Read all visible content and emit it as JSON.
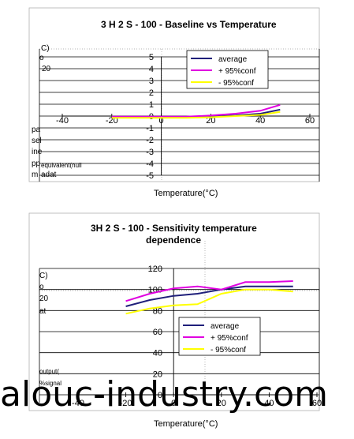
{
  "chart_data": [
    {
      "type": "line",
      "title": "3 H 2 S - 100 - Baseline  vs  Temperature",
      "xlabel": "Temperature(°C)",
      "ylabel_fragments": [
        "C)",
        "o",
        "20",
        "pa",
        "sel",
        "ine",
        "pp",
        "m",
        "equivalent(null",
        "adat"
      ],
      "xlim": [
        -40,
        60
      ],
      "ylim": [
        -5,
        5
      ],
      "x_ticks": [
        "-40",
        "-20",
        "0",
        "20",
        "40",
        "60"
      ],
      "y_ticks": [
        "5",
        "4",
        "3",
        "2",
        "1",
        "0",
        "-1",
        "-2",
        "-3",
        "-4",
        "-5"
      ],
      "legend": [
        "average",
        "+   95%conf",
        "-   95%conf"
      ],
      "series": [
        {
          "name": "average",
          "color": "#1f1f7a",
          "x": [
            -20,
            -10,
            0,
            10,
            20,
            30,
            40,
            48
          ],
          "y": [
            -0.1,
            -0.1,
            -0.1,
            -0.1,
            -0.05,
            0.05,
            0.2,
            0.55
          ]
        },
        {
          "name": "+   95%conf",
          "color": "#e000e0",
          "x": [
            -20,
            -10,
            0,
            10,
            20,
            30,
            40,
            48
          ],
          "y": [
            -0.05,
            -0.05,
            -0.05,
            -0.05,
            0.05,
            0.2,
            0.45,
            0.95
          ]
        },
        {
          "name": "-   95%conf",
          "color": "#ffff00",
          "x": [
            -20,
            -10,
            0,
            10,
            20,
            30,
            40,
            48
          ],
          "y": [
            -0.15,
            -0.15,
            -0.15,
            -0.15,
            -0.1,
            0.0,
            0.1,
            0.35
          ]
        }
      ]
    },
    {
      "type": "line",
      "title": "3H 2 S - 100 - Sensitivity  temperature",
      "subtitle": "dependence",
      "xlabel": "Temperature(°C)",
      "ylabel_fragments": [
        "C)",
        "o",
        "20",
        "at",
        "output(",
        "%signal"
      ],
      "xlim": [
        -40,
        60
      ],
      "ylim": [
        0,
        120
      ],
      "x_ticks": [
        "-40",
        "-20",
        "0",
        "20",
        "40",
        "60"
      ],
      "y_ticks": [
        "120",
        "100",
        "80",
        "60",
        "40",
        "20",
        "0"
      ],
      "legend": [
        "average",
        "+   95%conf",
        "-   95%conf"
      ],
      "series": [
        {
          "name": "average",
          "color": "#1f1f7a",
          "x": [
            -20,
            -10,
            0,
            10,
            20,
            30,
            40,
            50
          ],
          "y": [
            84,
            90,
            94,
            96,
            100,
            103,
            103,
            103
          ]
        },
        {
          "name": "+   95%conf",
          "color": "#e000e0",
          "x": [
            -20,
            -10,
            0,
            10,
            20,
            30,
            40,
            50
          ],
          "y": [
            89,
            96,
            101,
            103,
            100,
            107,
            107,
            108
          ]
        },
        {
          "name": "-   95%conf",
          "color": "#ffff00",
          "x": [
            -20,
            -10,
            0,
            10,
            20,
            30,
            40,
            50
          ],
          "y": [
            77,
            82,
            85,
            86,
            96,
            100,
            100,
            98
          ]
        }
      ]
    }
  ],
  "watermark": "alouc-industry.com"
}
